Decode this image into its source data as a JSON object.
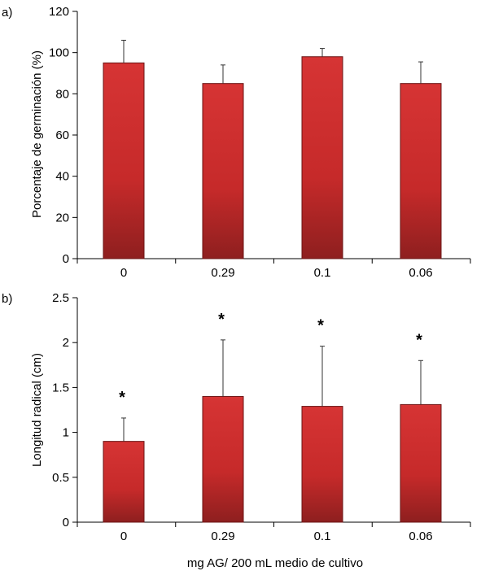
{
  "chart_data": [
    {
      "type": "bar",
      "panel_label": "a)",
      "categories": [
        "0",
        "0.29",
        "0.1",
        "0.06"
      ],
      "values": [
        95,
        85,
        98,
        85
      ],
      "error_upper": [
        106,
        94,
        102,
        95.5
      ],
      "annotations": [
        "",
        "",
        "",
        ""
      ],
      "ylabel": "Porcentaje de germinación (%)",
      "xlabel": "",
      "ylim": [
        0,
        120
      ],
      "yticks": [
        "0",
        "20",
        "40",
        "60",
        "80",
        "100",
        "120"
      ],
      "ytick_values": [
        0,
        20,
        40,
        60,
        80,
        100,
        120
      ],
      "bar_color": "#d32f2f",
      "grid": false
    },
    {
      "type": "bar",
      "panel_label": "b)",
      "categories": [
        "0",
        "0.29",
        "0.1",
        "0.06"
      ],
      "values": [
        0.9,
        1.4,
        1.29,
        1.31
      ],
      "error_upper": [
        1.16,
        2.03,
        1.96,
        1.8
      ],
      "annotations": [
        "*",
        "*",
        "*",
        "*"
      ],
      "ylabel": "Longitud radical (cm)",
      "xlabel": "mg AG/ 200 mL medio de cultivo",
      "ylim": [
        0,
        2.5
      ],
      "yticks": [
        "0",
        "0.5",
        "1",
        "1.5",
        "2",
        "2.5"
      ],
      "ytick_values": [
        0,
        0.5,
        1,
        1.5,
        2,
        2.5
      ],
      "bar_color": "#d32f2f",
      "grid": false
    }
  ]
}
